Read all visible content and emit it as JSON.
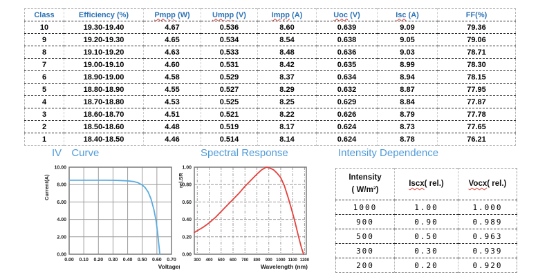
{
  "sections": {
    "iv_title": "IV Curve",
    "spectral_title": "Spectral Response",
    "intensity_title": "Intensity Dependence"
  },
  "colors": {
    "table_header_text": "#2e74b5",
    "section_title_text": "#4f9bd8",
    "squiggle_red": "#e03c31",
    "iv_curve_line": "#5aabdf",
    "spectral_line": "#e5403a",
    "grid_gray": "#9c9c9c",
    "frame_gray": "#7a7a7a"
  },
  "table": {
    "headers": [
      {
        "main": "",
        "rest": "Class",
        "wavy": false
      },
      {
        "main": "",
        "rest": "Efficiency (%)",
        "wavy": false
      },
      {
        "main": "Pmpp",
        "rest": " (W)",
        "wavy": true
      },
      {
        "main": "Umpp",
        "rest": " (V)",
        "wavy": true
      },
      {
        "main": "Impp",
        "rest": " (A)",
        "wavy": true
      },
      {
        "main": "Uoc",
        "rest": " (V)",
        "wavy": true
      },
      {
        "main": "Isc",
        "rest": " (A)",
        "wavy": true
      },
      {
        "main": "",
        "rest": "FF(%)",
        "wavy": false
      }
    ],
    "rows": [
      [
        "10",
        "19.30-19.40",
        "4.67",
        "0.536",
        "8.60",
        "0.639",
        "9.09",
        "79.36"
      ],
      [
        "9",
        "19.20-19.30",
        "4.65",
        "0.534",
        "8.54",
        "0.638",
        "9.05",
        "79.06"
      ],
      [
        "8",
        "19.10-19.20",
        "4.63",
        "0.533",
        "8.48",
        "0.636",
        "9.03",
        "78.71"
      ],
      [
        "7",
        "19.00-19.10",
        "4.60",
        "0.531",
        "8.42",
        "0.635",
        "8.99",
        "78.30"
      ],
      [
        "6",
        "18.90-19.00",
        "4.58",
        "0.529",
        "8.37",
        "0.634",
        "8.94",
        "78.15"
      ],
      [
        "5",
        "18.80-18.90",
        "4.55",
        "0.527",
        "8.29",
        "0.632",
        "8.87",
        "77.95"
      ],
      [
        "4",
        "18.70-18.80",
        "4.53",
        "0.525",
        "8.25",
        "0.629",
        "8.84",
        "77.87"
      ],
      [
        "3",
        "18.60-18.70",
        "4.51",
        "0.521",
        "8.22",
        "0.626",
        "8.79",
        "77.78"
      ],
      [
        "2",
        "18.50-18.60",
        "4.48",
        "0.519",
        "8.17",
        "0.624",
        "8.73",
        "77.65"
      ],
      [
        "1",
        "18.40-18.50",
        "4.46",
        "0.514",
        "8.14",
        "0.624",
        "8.78",
        "76.21"
      ]
    ]
  },
  "intensity_table": {
    "header_intensity_line1": "Intensity",
    "header_intensity_line2": "( W/m²)",
    "headers": [
      {
        "main": "Iscx",
        "rest": "( rel.)",
        "wavy": true
      },
      {
        "main": "Vocx",
        "rest": "( rel.)",
        "wavy": true
      }
    ],
    "rows": [
      [
        "1000",
        "1.00",
        "1.000"
      ],
      [
        "900",
        "0.90",
        "0.989"
      ],
      [
        "500",
        "0.50",
        "0.963"
      ],
      [
        "300",
        "0.30",
        "0.939"
      ],
      [
        "200",
        "0.20",
        "0.920"
      ]
    ]
  },
  "chart_data": [
    {
      "type": "line",
      "title": "IV Curve",
      "xlabel": "Voltage(V)",
      "ylabel": "Current(A)",
      "xlim": [
        0,
        0.7
      ],
      "ylim": [
        0,
        10
      ],
      "x_tick_labels": [
        "0.00",
        "0.10",
        "0.20",
        "0.30",
        "0.40",
        "0.50",
        "0.60",
        "0.70"
      ],
      "y_tick_labels": [
        "0.00",
        "2.00",
        "4.00",
        "6.00",
        "8.00",
        "10.00"
      ],
      "grid": "solid",
      "legend": "none",
      "line_color": "#5aabdf",
      "series": [
        {
          "name": "IV curve",
          "points": [
            [
              0,
              8.5
            ],
            [
              0.05,
              8.5
            ],
            [
              0.1,
              8.5
            ],
            [
              0.15,
              8.5
            ],
            [
              0.2,
              8.5
            ],
            [
              0.25,
              8.5
            ],
            [
              0.3,
              8.49
            ],
            [
              0.35,
              8.47
            ],
            [
              0.4,
              8.43
            ],
            [
              0.44,
              8.35
            ],
            [
              0.47,
              8.22
            ],
            [
              0.5,
              7.95
            ],
            [
              0.52,
              7.65
            ],
            [
              0.54,
              7.15
            ],
            [
              0.56,
              6.35
            ],
            [
              0.58,
              5.1
            ],
            [
              0.595,
              3.8
            ],
            [
              0.605,
              2.5
            ],
            [
              0.615,
              0.9
            ],
            [
              0.62,
              0
            ]
          ]
        }
      ]
    },
    {
      "type": "line",
      "title": "Spectral Response",
      "xlabel": "Wavelength (nm)",
      "ylabel": "rel.SR",
      "xlim": [
        275,
        1215
      ],
      "ylim": [
        0,
        1
      ],
      "x_tick_labels": [
        "300",
        "400",
        "500",
        "600",
        "700",
        "800",
        "900",
        "1000",
        "1100",
        "1200"
      ],
      "y_tick_labels": [
        "0.00",
        "0.20",
        "0.40",
        "0.60",
        "0.80",
        "1.00"
      ],
      "grid": "dashed",
      "legend": "none",
      "line_color": "#e5403a",
      "series": [
        {
          "name": "Spectral response",
          "points": [
            [
              275,
              0.25
            ],
            [
              300,
              0.27
            ],
            [
              350,
              0.31
            ],
            [
              400,
              0.36
            ],
            [
              450,
              0.42
            ],
            [
              500,
              0.49
            ],
            [
              550,
              0.56
            ],
            [
              600,
              0.63
            ],
            [
              650,
              0.7
            ],
            [
              700,
              0.78
            ],
            [
              750,
              0.85
            ],
            [
              800,
              0.92
            ],
            [
              840,
              0.97
            ],
            [
              880,
              1.0
            ],
            [
              910,
              0.99
            ],
            [
              940,
              0.97
            ],
            [
              970,
              0.93
            ],
            [
              1000,
              0.88
            ],
            [
              1030,
              0.79
            ],
            [
              1060,
              0.66
            ],
            [
              1090,
              0.52
            ],
            [
              1120,
              0.37
            ],
            [
              1150,
              0.2
            ],
            [
              1175,
              0.07
            ],
            [
              1192,
              0
            ]
          ]
        }
      ]
    }
  ]
}
